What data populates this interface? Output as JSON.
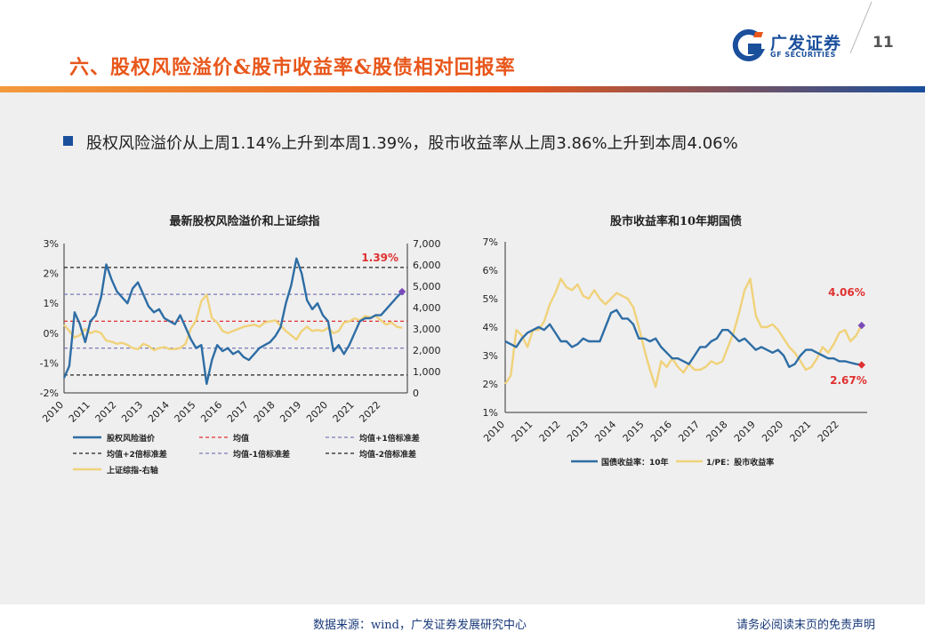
{
  "header": {
    "title": "六、股权风险溢价&股市收益率&股债相对回报率",
    "logo_cn": "广发证券",
    "logo_en": "GF SECURITIES",
    "page_number": "11"
  },
  "bullet": "股权风险溢价从上周1.14%上升到本周1.39%，股市收益率从上周3.86%上升到本周4.06%",
  "footer": {
    "source": "数据来源：wind，广发证券发展研究中心",
    "disclaimer": "请务必阅读末页的免责声明"
  },
  "colors": {
    "accent": "#e8571b",
    "brand_blue": "#1a4f9c",
    "series_blue": "#2e6da4",
    "series_gold": "#f0d27a",
    "mean_red": "#e03030",
    "sd_purple": "#7a7ab8",
    "highlight_red": "#e03030"
  },
  "chart_data": [
    {
      "type": "line",
      "title": "最新股权风险溢价和上证综指",
      "x_ticks": [
        "2010",
        "2011",
        "2012",
        "2013",
        "2014",
        "2015",
        "2016",
        "2017",
        "2018",
        "2019",
        "2020",
        "2021",
        "2022"
      ],
      "y_left": {
        "ticks": [
          "3%",
          "2%",
          "1%",
          "0%",
          "-1%",
          "-2%"
        ],
        "min": -2,
        "max": 3
      },
      "y_right": {
        "ticks": [
          "7,000",
          "6,000",
          "5,000",
          "4,000",
          "3,000",
          "2,000",
          "1,000",
          "0"
        ],
        "min": 0,
        "max": 7000
      },
      "reference_lines": [
        {
          "name": "均值",
          "value": 0.4,
          "style": "dashed",
          "color": "#e03030"
        },
        {
          "name": "均值+1倍标准差",
          "value": 1.3,
          "style": "dashed",
          "color": "#7a7ab8"
        },
        {
          "name": "均值+2倍标准差",
          "value": 2.2,
          "style": "dashed",
          "color": "#222222"
        },
        {
          "name": "均值-1倍标准差",
          "value": -0.5,
          "style": "dashed",
          "color": "#7a7ab8"
        },
        {
          "name": "均值-2倍标准差",
          "value": -1.4,
          "style": "dashed",
          "color": "#222222"
        }
      ],
      "series": [
        {
          "name": "股权风险溢价",
          "axis": "left",
          "color": "#2e6da4",
          "x": [
            2010.0,
            2010.2,
            2010.4,
            2010.6,
            2010.8,
            2011.0,
            2011.2,
            2011.4,
            2011.6,
            2011.8,
            2012.0,
            2012.2,
            2012.4,
            2012.6,
            2012.8,
            2013.0,
            2013.2,
            2013.4,
            2013.6,
            2013.8,
            2014.0,
            2014.2,
            2014.4,
            2014.6,
            2014.8,
            2015.0,
            2015.2,
            2015.4,
            2015.6,
            2015.8,
            2016.0,
            2016.2,
            2016.4,
            2016.6,
            2016.8,
            2017.0,
            2017.2,
            2017.4,
            2017.6,
            2017.8,
            2018.0,
            2018.2,
            2018.4,
            2018.6,
            2018.8,
            2019.0,
            2019.2,
            2019.4,
            2019.6,
            2019.8,
            2020.0,
            2020.2,
            2020.4,
            2020.6,
            2020.8,
            2021.0,
            2021.2,
            2021.4,
            2021.6,
            2021.8,
            2022.0,
            2022.2,
            2022.4,
            2022.6,
            2022.8
          ],
          "values": [
            -1.5,
            -1.1,
            0.7,
            0.3,
            -0.3,
            0.4,
            0.6,
            1.2,
            2.3,
            1.8,
            1.4,
            1.2,
            1.0,
            1.5,
            1.7,
            1.3,
            0.9,
            0.7,
            0.8,
            0.5,
            0.4,
            0.3,
            0.6,
            0.2,
            -0.2,
            -0.5,
            -0.4,
            -1.7,
            -0.9,
            -0.4,
            -0.6,
            -0.5,
            -0.7,
            -0.6,
            -0.8,
            -0.9,
            -0.7,
            -0.5,
            -0.4,
            -0.3,
            -0.1,
            0.2,
            1.0,
            1.6,
            2.5,
            2.0,
            1.1,
            0.8,
            1.0,
            0.6,
            0.4,
            -0.6,
            -0.4,
            -0.7,
            -0.4,
            0.0,
            0.4,
            0.5,
            0.5,
            0.6,
            0.6,
            0.8,
            1.0,
            1.2,
            1.39
          ]
        },
        {
          "name": "上证综指-右轴",
          "axis": "right",
          "color": "#f0d27a",
          "x": [
            2010.0,
            2010.2,
            2010.4,
            2010.6,
            2010.8,
            2011.0,
            2011.2,
            2011.4,
            2011.6,
            2011.8,
            2012.0,
            2012.2,
            2012.4,
            2012.6,
            2012.8,
            2013.0,
            2013.2,
            2013.4,
            2013.6,
            2013.8,
            2014.0,
            2014.2,
            2014.4,
            2014.6,
            2014.8,
            2015.0,
            2015.2,
            2015.4,
            2015.6,
            2015.8,
            2016.0,
            2016.2,
            2016.4,
            2016.6,
            2016.8,
            2017.0,
            2017.2,
            2017.4,
            2017.6,
            2017.8,
            2018.0,
            2018.2,
            2018.4,
            2018.6,
            2018.8,
            2019.0,
            2019.2,
            2019.4,
            2019.6,
            2019.8,
            2020.0,
            2020.2,
            2020.4,
            2020.6,
            2020.8,
            2021.0,
            2021.2,
            2021.4,
            2021.6,
            2021.8,
            2022.0,
            2022.2,
            2022.4,
            2022.6,
            2022.8
          ],
          "values": [
            3200,
            2900,
            2600,
            2700,
            3000,
            2800,
            2900,
            2800,
            2450,
            2400,
            2300,
            2350,
            2250,
            2100,
            2050,
            2300,
            2200,
            2000,
            2100,
            2150,
            2050,
            2050,
            2100,
            2300,
            3000,
            3400,
            4300,
            4600,
            3500,
            3300,
            2900,
            2800,
            2900,
            3000,
            3100,
            3150,
            3200,
            3100,
            3300,
            3350,
            3400,
            3150,
            2900,
            2700,
            2500,
            2900,
            3100,
            2900,
            2950,
            2900,
            3050,
            2800,
            2900,
            3300,
            3350,
            3500,
            3400,
            3600,
            3550,
            3600,
            3400,
            3200,
            3300,
            3100,
            3050
          ]
        }
      ],
      "annotation": "1.39%"
    },
    {
      "type": "line",
      "title": "股市收益率和10年期国债",
      "x_ticks": [
        "2010",
        "2011",
        "2012",
        "2013",
        "2014",
        "2015",
        "2016",
        "2017",
        "2018",
        "2019",
        "2020",
        "2021",
        "2022"
      ],
      "y_axis": {
        "ticks": [
          "7%",
          "6%",
          "5%",
          "4%",
          "3%",
          "2%",
          "1%"
        ],
        "min": 1,
        "max": 7
      },
      "series": [
        {
          "name": "国债收益率：10年",
          "color": "#2e6da4",
          "x": [
            2010.0,
            2010.2,
            2010.4,
            2010.6,
            2010.8,
            2011.0,
            2011.2,
            2011.4,
            2011.6,
            2011.8,
            2012.0,
            2012.2,
            2012.4,
            2012.6,
            2012.8,
            2013.0,
            2013.2,
            2013.4,
            2013.6,
            2013.8,
            2014.0,
            2014.2,
            2014.4,
            2014.6,
            2014.8,
            2015.0,
            2015.2,
            2015.4,
            2015.6,
            2015.8,
            2016.0,
            2016.2,
            2016.4,
            2016.6,
            2016.8,
            2017.0,
            2017.2,
            2017.4,
            2017.6,
            2017.8,
            2018.0,
            2018.2,
            2018.4,
            2018.6,
            2018.8,
            2019.0,
            2019.2,
            2019.4,
            2019.6,
            2019.8,
            2020.0,
            2020.2,
            2020.4,
            2020.6,
            2020.8,
            2021.0,
            2021.2,
            2021.4,
            2021.6,
            2021.8,
            2022.0,
            2022.2,
            2022.4,
            2022.6,
            2022.8
          ],
          "values": [
            3.5,
            3.4,
            3.3,
            3.6,
            3.8,
            3.9,
            4.0,
            3.9,
            4.1,
            3.8,
            3.5,
            3.5,
            3.3,
            3.4,
            3.6,
            3.5,
            3.5,
            3.5,
            4.0,
            4.5,
            4.6,
            4.3,
            4.3,
            4.1,
            3.6,
            3.6,
            3.5,
            3.6,
            3.3,
            3.1,
            2.9,
            2.9,
            2.8,
            2.7,
            3.0,
            3.3,
            3.3,
            3.5,
            3.6,
            3.9,
            3.9,
            3.7,
            3.5,
            3.6,
            3.4,
            3.2,
            3.3,
            3.2,
            3.1,
            3.2,
            3.0,
            2.6,
            2.7,
            3.0,
            3.2,
            3.2,
            3.1,
            3.0,
            2.9,
            2.9,
            2.8,
            2.8,
            2.75,
            2.7,
            2.67
          ]
        },
        {
          "name": "1/PE：股市收益率",
          "color": "#f0d27a",
          "x": [
            2010.0,
            2010.2,
            2010.4,
            2010.6,
            2010.8,
            2011.0,
            2011.2,
            2011.4,
            2011.6,
            2011.8,
            2012.0,
            2012.2,
            2012.4,
            2012.6,
            2012.8,
            2013.0,
            2013.2,
            2013.4,
            2013.6,
            2013.8,
            2014.0,
            2014.2,
            2014.4,
            2014.6,
            2014.8,
            2015.0,
            2015.2,
            2015.4,
            2015.6,
            2015.8,
            2016.0,
            2016.2,
            2016.4,
            2016.6,
            2016.8,
            2017.0,
            2017.2,
            2017.4,
            2017.6,
            2017.8,
            2018.0,
            2018.2,
            2018.4,
            2018.6,
            2018.8,
            2019.0,
            2019.2,
            2019.4,
            2019.6,
            2019.8,
            2020.0,
            2020.2,
            2020.4,
            2020.6,
            2020.8,
            2021.0,
            2021.2,
            2021.4,
            2021.6,
            2021.8,
            2022.0,
            2022.2,
            2022.4,
            2022.6,
            2022.8
          ],
          "values": [
            2.0,
            2.3,
            3.9,
            3.7,
            3.3,
            3.9,
            3.9,
            4.2,
            4.8,
            5.2,
            5.7,
            5.4,
            5.3,
            5.5,
            5.1,
            5.0,
            5.3,
            5.0,
            4.8,
            5.0,
            5.2,
            5.1,
            5.0,
            4.7,
            4.0,
            3.2,
            2.5,
            1.9,
            2.8,
            2.6,
            2.9,
            2.6,
            2.4,
            2.7,
            2.5,
            2.5,
            2.6,
            2.8,
            2.7,
            2.8,
            3.3,
            3.8,
            4.5,
            5.3,
            5.7,
            4.4,
            4.0,
            4.0,
            4.1,
            3.9,
            3.6,
            3.3,
            3.1,
            2.8,
            2.5,
            2.6,
            2.9,
            3.3,
            3.1,
            3.4,
            3.8,
            3.9,
            3.5,
            3.7,
            4.06
          ]
        }
      ],
      "annotations": [
        "4.06%",
        "2.67%"
      ]
    }
  ]
}
